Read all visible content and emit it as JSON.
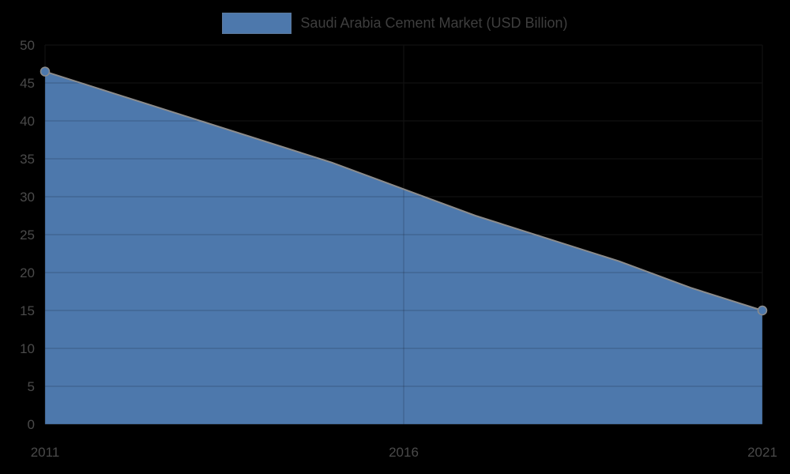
{
  "page": {
    "background_color": "#000000"
  },
  "legend": {
    "series_label": "Saudi Arabia Cement Market (USD Billion)",
    "swatch_color": "#4d78ac"
  },
  "chart_data": {
    "type": "area",
    "title": "",
    "xlabel": "",
    "ylabel": "",
    "x": [
      "2011",
      "2012",
      "2013",
      "2014",
      "2015",
      "2016",
      "2017",
      "2018",
      "2019",
      "2020",
      "2021"
    ],
    "series": [
      {
        "name": "Saudi Arabia Cement Market (USD Billion)",
        "values": [
          46.5,
          43.5,
          40.5,
          37.5,
          34.5,
          31,
          27.5,
          24.5,
          21.5,
          18,
          15
        ]
      }
    ],
    "visible_x_ticks": [
      {
        "label": "2011",
        "index": 0
      },
      {
        "label": "2016",
        "index": 5
      },
      {
        "label": "2021",
        "index": 10
      }
    ],
    "y_ticks": [
      0,
      5,
      10,
      15,
      20,
      25,
      30,
      35,
      40,
      45,
      50
    ],
    "ylim": [
      0,
      50
    ],
    "grid": true,
    "legend_position": "top-center",
    "endpoint_markers": true,
    "area_color": "#4d78ac",
    "line_color": "#8c8c8c",
    "grid_color_under": "#1c1c1c",
    "grid_color_over": "rgba(0,0,0,0.22)",
    "axis_label_color": "#4a4a4a"
  }
}
